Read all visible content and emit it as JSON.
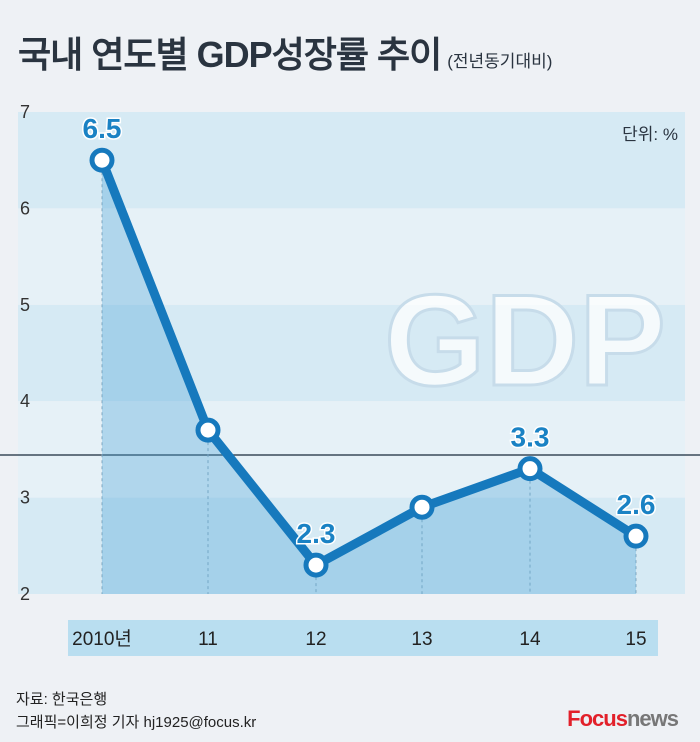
{
  "title": "국내 연도별 GDP성장률 추이",
  "subtitle": "(전년동기대비)",
  "unit": "단위: %",
  "footer": {
    "source": "자료: 한국은행",
    "credit": "그래픽=이희정 기자 hj1925@focus.kr",
    "logo_focus": "Focus",
    "logo_news": "news"
  },
  "colors": {
    "line": "#1679bd",
    "label": "#1a82c4",
    "band": "#d6eaf4",
    "logo_red": "#e2202a",
    "logo_gray": "#777777"
  },
  "chart_data": {
    "type": "line",
    "categories": [
      "2010년",
      "11",
      "12",
      "13",
      "14",
      "15"
    ],
    "values": [
      6.5,
      3.7,
      2.3,
      2.9,
      3.3,
      2.6
    ],
    "data_labels": [
      "6.5",
      "",
      "2.3",
      "",
      "3.3",
      "2.6"
    ],
    "yticks": [
      "2",
      "3",
      "4",
      "5",
      "6",
      "7"
    ],
    "ylim": [
      2,
      7
    ],
    "background_text": "GDP"
  }
}
